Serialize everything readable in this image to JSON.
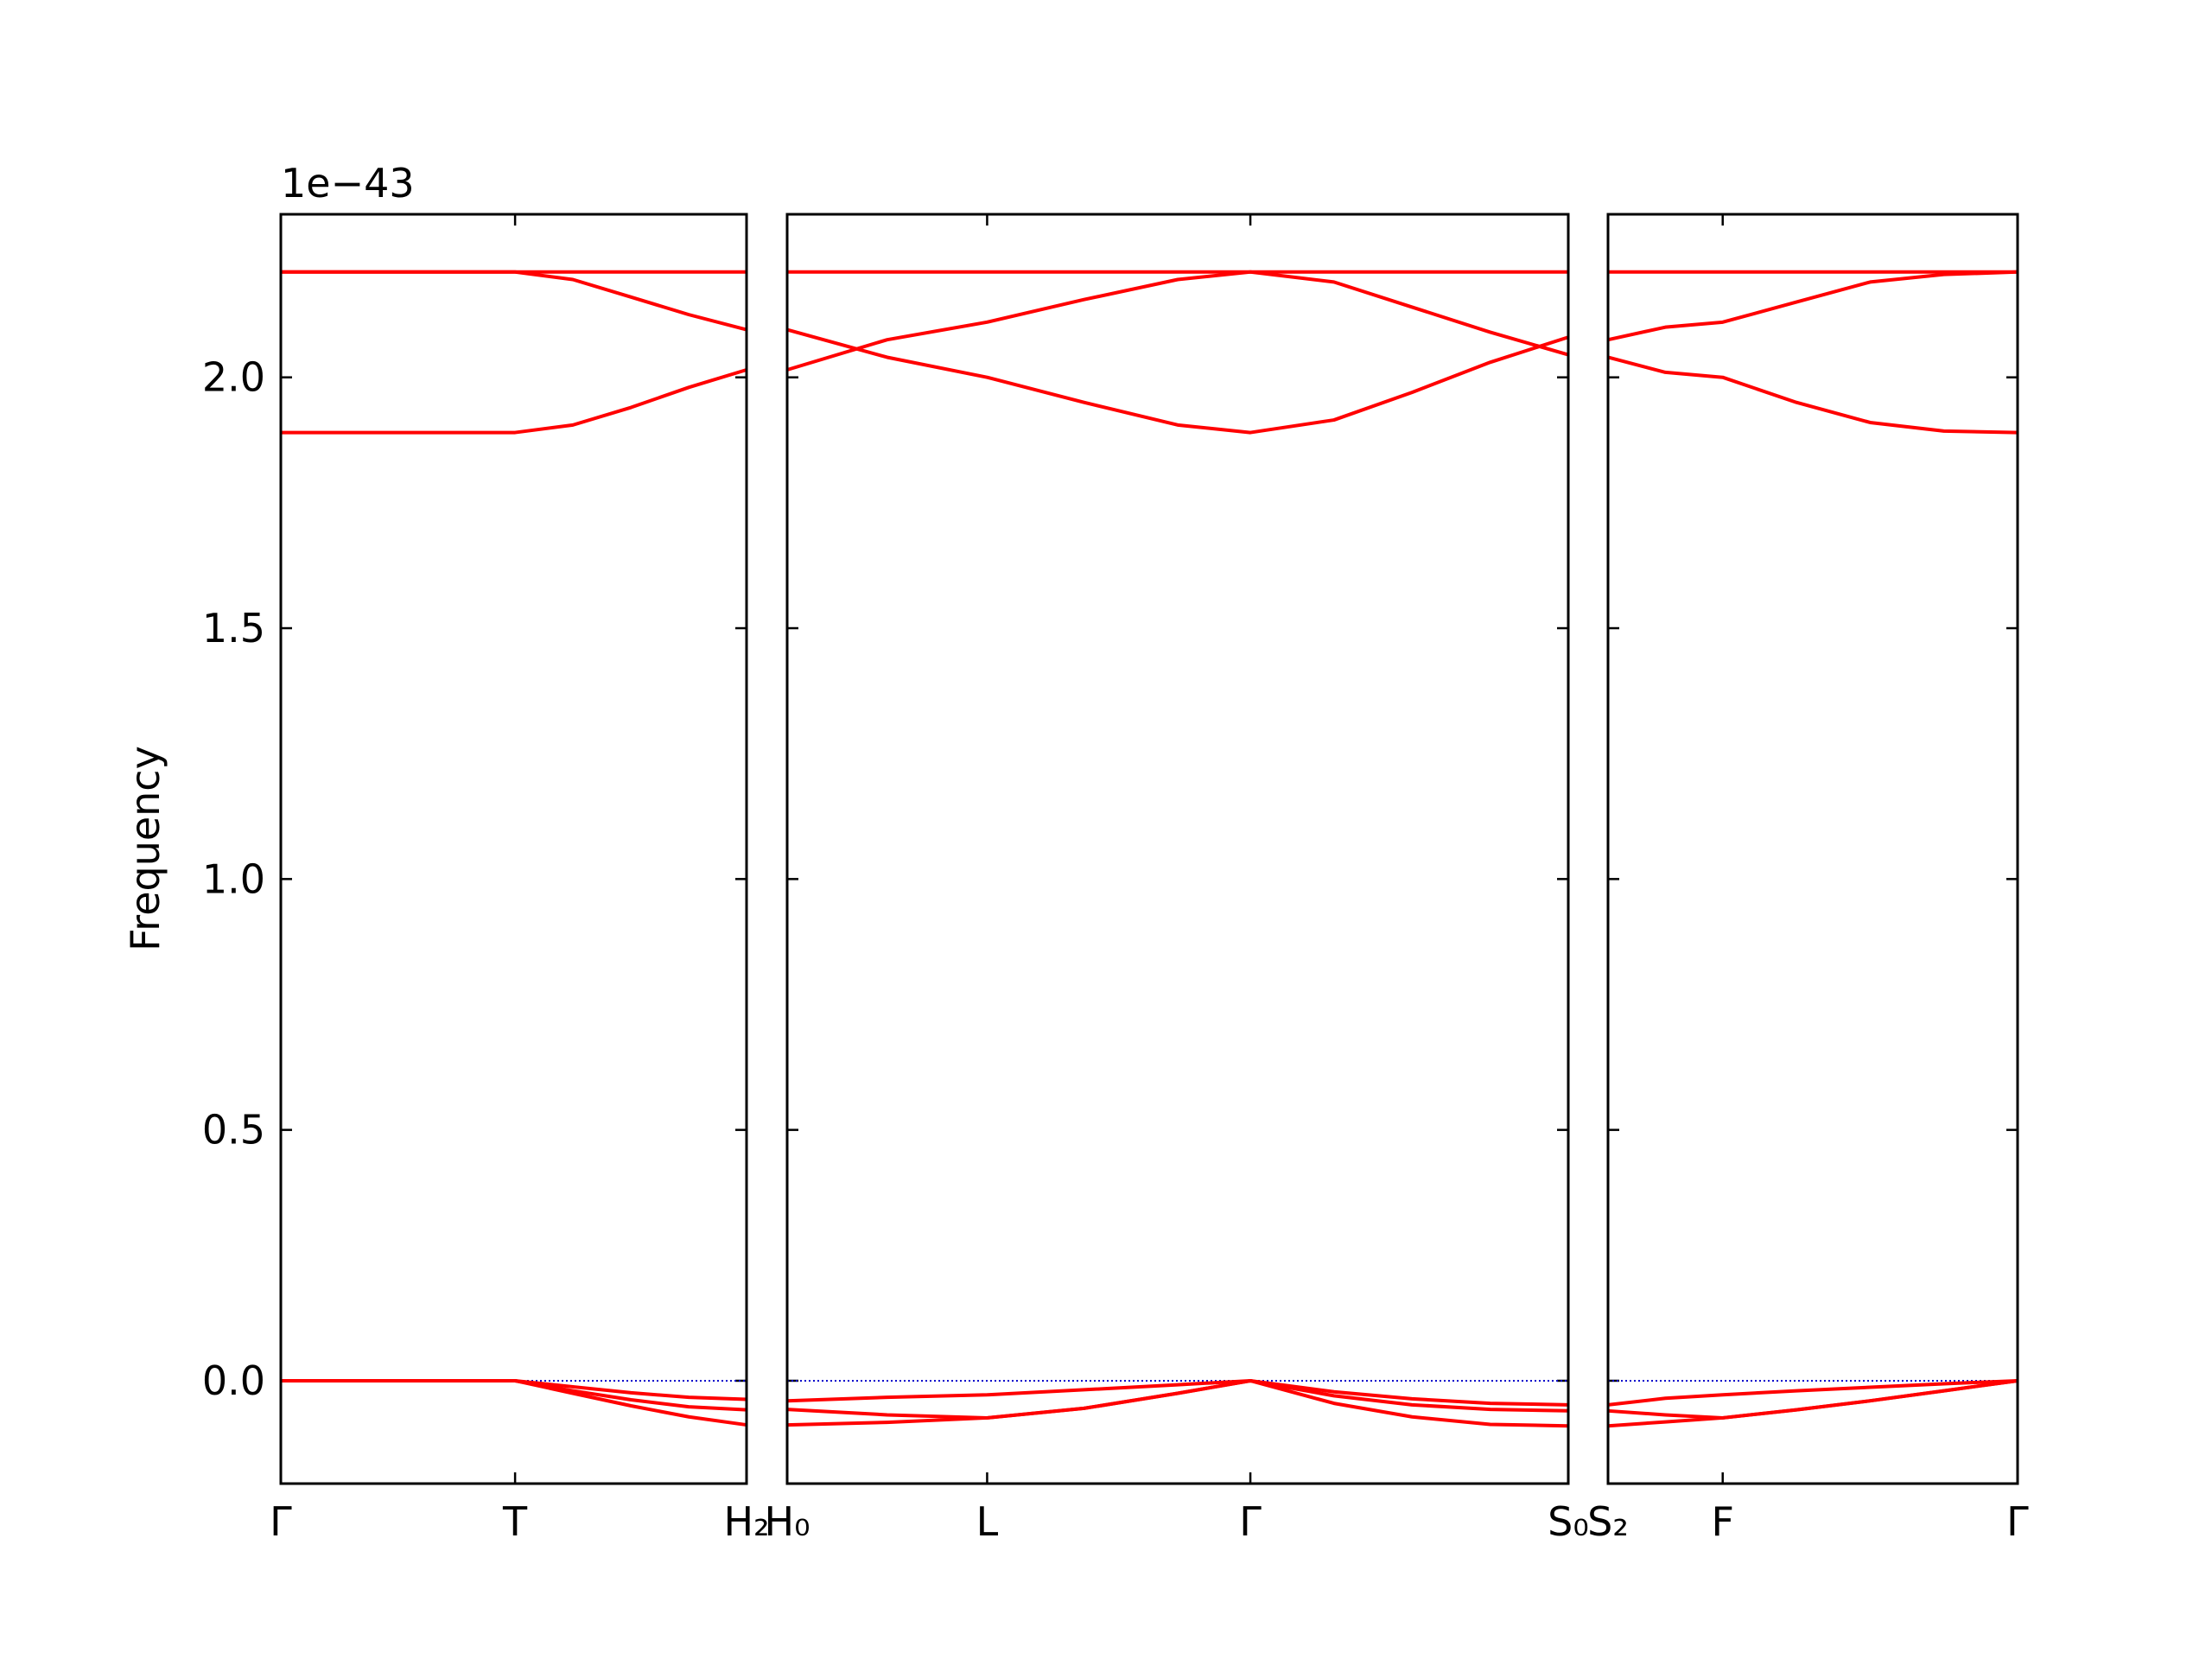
{
  "chart_data": [
    {
      "type": "line",
      "ylabel": "Frequency",
      "y_offset_text": "1e−43",
      "xlim": [
        0,
        1
      ],
      "xticks": [
        {
          "value": 0,
          "label": "Γ"
        },
        {
          "value": 0.503,
          "label": "T"
        },
        {
          "value": 1,
          "label": "H₂"
        }
      ],
      "ylim": [
        -0.205,
        2.325
      ],
      "yticks": [
        {
          "value": 0,
          "label": "0.0"
        },
        0.5,
        {
          "value": 1,
          "label": "1.0"
        },
        1.5,
        {
          "value": 2,
          "label": "2.0"
        }
      ],
      "zero_line": true,
      "zero_line_color": "#0000cc",
      "x": [
        0,
        0.25,
        0.503,
        0.627,
        0.752,
        0.876,
        1.0
      ],
      "series": [
        {
          "color": "#ff0000",
          "values": [
            2.21,
            2.21,
            2.21,
            2.21,
            2.21,
            2.21,
            2.21
          ]
        },
        {
          "color": "#ff0000",
          "values": [
            2.21,
            2.21,
            2.21,
            2.195,
            2.16,
            2.125,
            2.095
          ]
        },
        {
          "color": "#ff0000",
          "values": [
            1.89,
            1.89,
            1.89,
            1.905,
            1.94,
            1.98,
            2.015
          ]
        },
        {
          "color": "#ff0000",
          "values": [
            0,
            0,
            0,
            -0.012,
            -0.024,
            -0.033,
            -0.037
          ]
        },
        {
          "color": "#ff0000",
          "values": [
            0,
            0,
            0,
            -0.02,
            -0.038,
            -0.052,
            -0.058
          ]
        },
        {
          "color": "#ff0000",
          "values": [
            0,
            0,
            0,
            -0.025,
            -0.05,
            -0.072,
            -0.088
          ]
        }
      ]
    },
    {
      "type": "line",
      "xlim": [
        0,
        1
      ],
      "xticks": [
        {
          "value": 0,
          "label": "H₀"
        },
        {
          "value": 0.256,
          "label": "L"
        },
        {
          "value": 0.593,
          "label": "Γ"
        },
        {
          "value": 1,
          "label": "S₀"
        }
      ],
      "ylim": [
        -0.205,
        2.325
      ],
      "yticks": [
        0,
        0.5,
        1,
        1.5,
        2
      ],
      "zero_line": true,
      "zero_line_color": "#0000cc",
      "x": [
        0,
        0.128,
        0.256,
        0.38,
        0.5,
        0.593,
        0.7,
        0.8,
        0.9,
        1.0
      ],
      "series": [
        {
          "color": "#ff0000",
          "values": [
            2.21,
            2.21,
            2.21,
            2.21,
            2.21,
            2.21,
            2.21,
            2.21,
            2.21,
            2.21
          ]
        },
        {
          "color": "#ff0000",
          "values": [
            2.095,
            2.04,
            2.0,
            1.95,
            1.905,
            1.89,
            1.915,
            1.97,
            2.03,
            2.08
          ]
        },
        {
          "color": "#ff0000",
          "values": [
            2.015,
            2.075,
            2.11,
            2.155,
            2.195,
            2.21,
            2.19,
            2.14,
            2.09,
            2.045
          ]
        },
        {
          "color": "#ff0000",
          "values": [
            -0.04,
            -0.033,
            -0.028,
            -0.018,
            -0.008,
            0,
            -0.022,
            -0.036,
            -0.045,
            -0.048
          ]
        },
        {
          "color": "#ff0000",
          "values": [
            -0.057,
            -0.068,
            -0.074,
            -0.055,
            -0.025,
            0,
            -0.03,
            -0.048,
            -0.057,
            -0.06
          ]
        },
        {
          "color": "#ff0000",
          "values": [
            -0.088,
            -0.083,
            -0.074,
            -0.055,
            -0.025,
            0,
            -0.045,
            -0.072,
            -0.087,
            -0.09
          ]
        }
      ]
    },
    {
      "type": "line",
      "xlim": [
        0,
        1
      ],
      "xticks": [
        {
          "value": 0,
          "label": "S₂"
        },
        {
          "value": 0.28,
          "label": "F"
        },
        {
          "value": 1,
          "label": "Γ"
        }
      ],
      "ylim": [
        -0.205,
        2.325
      ],
      "yticks": [
        0,
        0.5,
        1,
        1.5,
        2
      ],
      "zero_line": true,
      "zero_line_color": "#0000cc",
      "x": [
        0,
        0.14,
        0.28,
        0.46,
        0.64,
        0.82,
        1.0
      ],
      "series": [
        {
          "color": "#ff0000",
          "values": [
            2.21,
            2.21,
            2.21,
            2.21,
            2.21,
            2.21,
            2.21
          ]
        },
        {
          "color": "#ff0000",
          "values": [
            2.075,
            2.1,
            2.11,
            2.15,
            2.19,
            2.205,
            2.21
          ]
        },
        {
          "color": "#ff0000",
          "values": [
            2.04,
            2.01,
            2.0,
            1.95,
            1.91,
            1.893,
            1.89
          ]
        },
        {
          "color": "#ff0000",
          "values": [
            -0.048,
            -0.035,
            -0.028,
            -0.02,
            -0.013,
            -0.006,
            0
          ]
        },
        {
          "color": "#ff0000",
          "values": [
            -0.06,
            -0.068,
            -0.074,
            -0.058,
            -0.04,
            -0.02,
            0
          ]
        },
        {
          "color": "#ff0000",
          "values": [
            -0.09,
            -0.082,
            -0.074,
            -0.058,
            -0.04,
            -0.02,
            0
          ]
        }
      ]
    }
  ]
}
